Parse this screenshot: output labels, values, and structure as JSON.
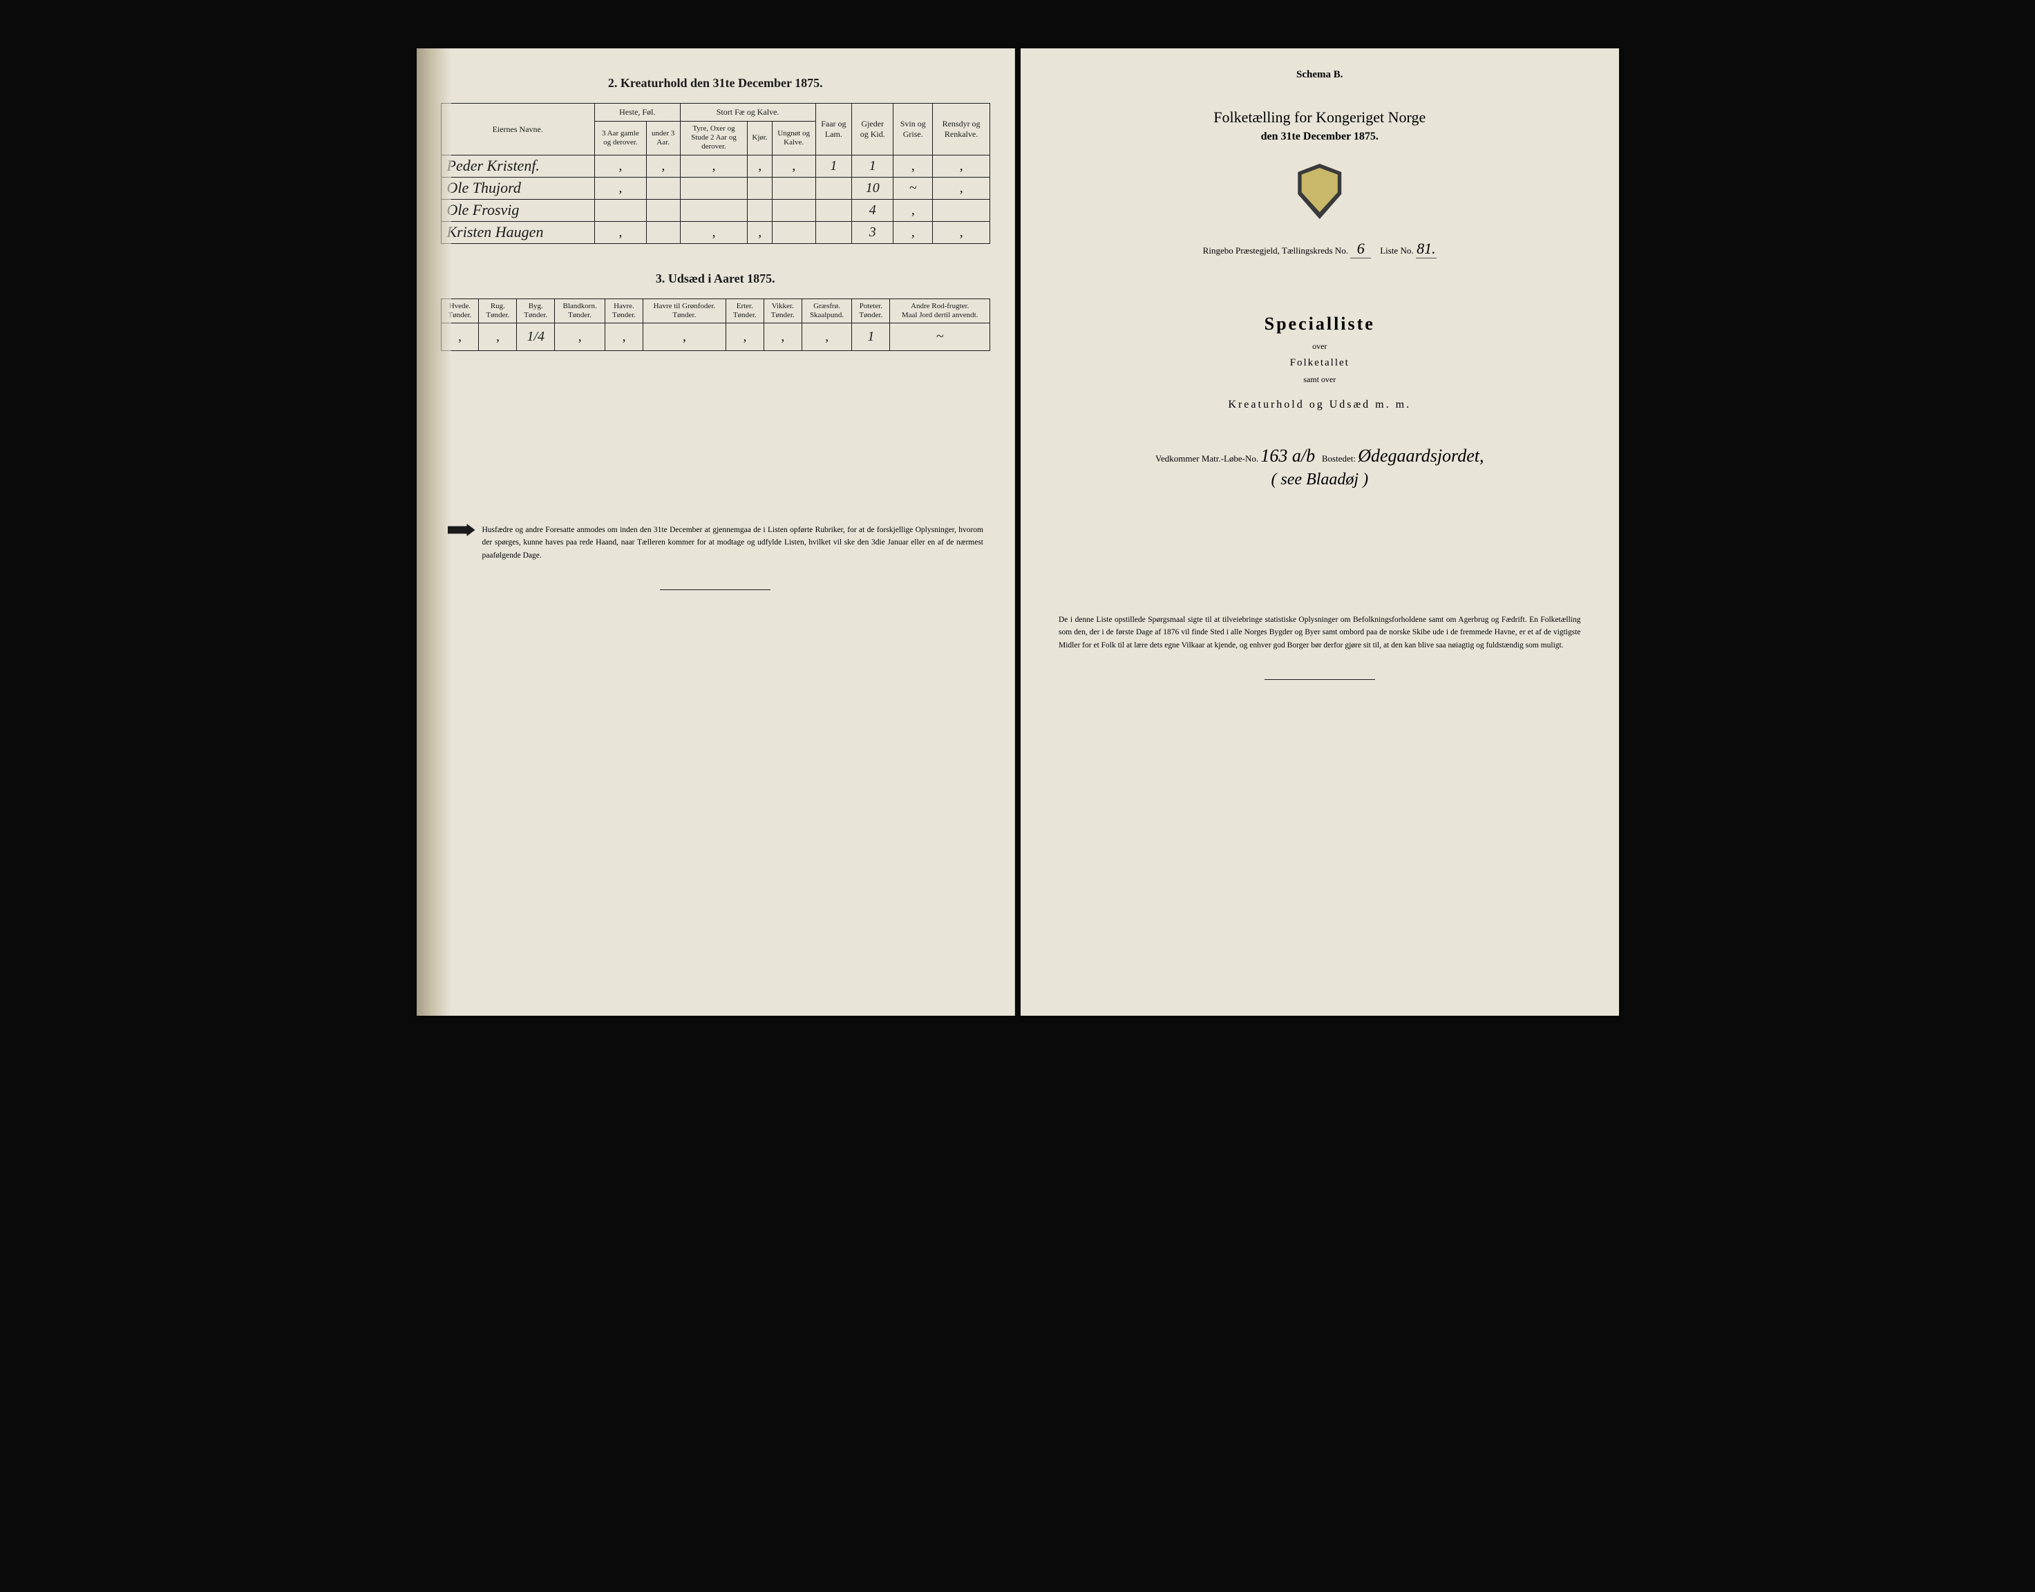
{
  "left": {
    "section2_title": "2.  Kreaturhold den 31te December 1875.",
    "table2": {
      "col_owner": "Eiernes Navne.",
      "grp_horse": "Heste, Føl.",
      "grp_cattle": "Stort Fæ og Kalve.",
      "h_horse_a": "3 Aar gamle og derover.",
      "h_horse_b": "under 3 Aar.",
      "h_cattle_a": "Tyre, Oxer og Stude 2 Aar og derover.",
      "h_cattle_b": "Kjør.",
      "h_cattle_c": "Ungnøt og Kalve.",
      "h_sheep": "Faar og Lam.",
      "h_goat": "Gjeder og Kid.",
      "h_pig": "Svin og Grise.",
      "h_rein": "Rensdyr og Renkalve.",
      "rows": [
        {
          "name": "Peder Kristenf.",
          "v": [
            "‚",
            "‚",
            "‚",
            "‚",
            "‚",
            "1",
            "1",
            "‚",
            "‚"
          ]
        },
        {
          "name": "Ole Thujord",
          "v": [
            "‚",
            "",
            "",
            "",
            "",
            "",
            "10",
            "~",
            "‚"
          ]
        },
        {
          "name": "Ole Frosvig",
          "v": [
            "",
            "",
            "",
            "",
            "",
            "",
            "4",
            "‚",
            ""
          ]
        },
        {
          "name": "Kristen Haugen",
          "v": [
            "‚",
            "",
            "‚",
            "‚",
            "",
            "",
            "3",
            "‚",
            "‚"
          ]
        }
      ]
    },
    "section3_title": "3.  Udsæd i Aaret 1875.",
    "table3": {
      "headers": [
        "Hvede.\nTønder.",
        "Rug.\nTønder.",
        "Byg.\nTønder.",
        "Blandkorn.\nTønder.",
        "Havre.\nTønder.",
        "Havre til Grønfoder.\nTønder.",
        "Erter.\nTønder.",
        "Vikker.\nTønder.",
        "Græsfrø.\nSkaalpund.",
        "Poteter.\nTønder.",
        "Andre Rod-frugter.\nMaal Jord dertil anvendt."
      ],
      "row": [
        "‚",
        "‚",
        "1/4",
        "‚",
        "‚",
        "‚",
        "‚",
        "‚",
        "‚",
        "1",
        "~"
      ]
    },
    "footnote": "Husfædre og andre Foresatte anmodes om inden den 31te December at gjennemgaa de i Listen opførte Rubriker, for at de forskjellige Oplysninger, hvorom der spørges, kunne haves paa rede Haand, naar Tælleren kommer for at modtage og udfylde Listen, hvilket vil ske den 3die Januar eller en af de nærmest paafølgende Dage."
  },
  "right": {
    "schema": "Schema B.",
    "census_title": "Folketælling for Kongeriget Norge",
    "census_sub": "den 31te December 1875.",
    "parish_prefix": "Ringebo  Præstegjeld,  Tællingskreds No.",
    "parish_kreds": "6",
    "parish_mid": "Liste No.",
    "parish_liste": "81.",
    "spec_title": "Specialliste",
    "spec_over": "over",
    "spec_folketallet": "Folketallet",
    "spec_samt": "samt over",
    "spec_kreatur": "Kreaturhold  og  Udsæd  m. m.",
    "vedk_prefix": "Vedkommer Matr.-Løbe-No.",
    "vedk_no": "163 a/b",
    "vedk_mid": "Bostedet:",
    "vedk_place": "Ødegaardsjordet,",
    "vedk_extra": "(  see  Blaadøj  )",
    "footnote": "De i denne Liste opstillede Spørgsmaal sigte til at tilveiebringe statistiske Oplysninger om Befolkningsforholdene samt om Agerbrug og Fædrift.  En Folketælling som den, der i de første Dage af 1876 vil finde Sted i alle Norges Bygder og Byer samt ombord paa de norske Skibe ude i de fremmede Havne, er et af de vigtigste Midler for et Folk til at lære dets egne Vilkaar at kjende, og enhver god Borger bør derfor gjøre sit til, at den kan blive saa nøiagtig og fuldstændig som muligt."
  }
}
